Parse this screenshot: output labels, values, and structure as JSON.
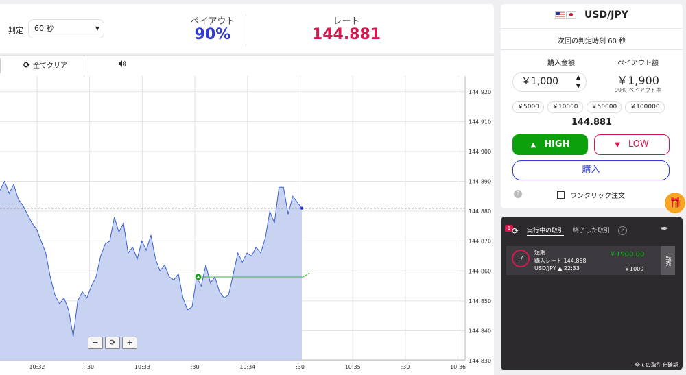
{
  "header": {
    "judge_label": "判定",
    "judge_value": "60 秒",
    "payout_label": "ペイアウト",
    "payout_value": "90%",
    "rate_label": "レート",
    "rate_value": "144.881"
  },
  "toolbar": {
    "clear_label": "全てクリア",
    "sound_icon": "speaker-icon"
  },
  "chart_data": {
    "type": "area",
    "x_tick_labels": [
      "10:32",
      ":30",
      "10:33",
      ":30",
      "10:34",
      ":30",
      "10:35",
      ":30",
      "10:36"
    ],
    "y_tick_labels": [
      "144.920",
      "144.910",
      "144.900",
      "144.890",
      "144.880",
      "144.870",
      "144.860",
      "144.850",
      "144.840",
      "144.830"
    ],
    "ylim": [
      144.83,
      144.925
    ],
    "grid": true,
    "current_rate": 144.881,
    "entry_rate": 144.858,
    "series": [
      {
        "values": [
          144.887,
          144.89,
          144.886,
          144.889,
          144.884,
          144.882,
          144.879,
          144.876,
          144.874,
          144.87,
          144.866,
          144.858,
          144.852,
          144.849,
          144.851,
          144.847,
          144.838,
          144.85,
          144.853,
          144.851,
          144.855,
          144.858,
          144.865,
          144.869,
          144.87,
          144.878,
          144.873,
          144.876,
          144.866,
          144.868,
          144.864,
          144.87,
          144.867,
          144.872,
          144.864,
          144.86,
          144.862,
          144.858,
          144.857,
          144.859,
          144.851,
          144.847,
          144.848,
          144.858,
          144.855,
          144.862,
          144.856,
          144.858,
          144.853,
          144.851,
          144.852,
          144.859,
          144.866,
          144.863,
          144.866,
          144.865,
          144.868,
          144.866,
          144.871,
          144.88,
          144.876,
          144.888,
          144.888,
          144.879,
          144.885,
          144.883,
          144.881
        ]
      }
    ]
  },
  "zoom": {
    "minus": "−",
    "reset": "⟳",
    "plus": "+"
  },
  "trade": {
    "pair": "USD/JPY",
    "next_judge": "次回の判定時刻 60 秒",
    "amount_label": "購入金額",
    "amount_value": "￥1,000",
    "payout_amount_label": "ペイアウト額",
    "payout_amount_value": "￥1,900",
    "payout_rate_text": "90% ペイアウト率",
    "quick_amounts": [
      "￥5000",
      "￥10000",
      "￥50000",
      "￥100000"
    ],
    "rate": "144.881",
    "high_label": "HIGH",
    "low_label": "LOW",
    "buy_label": "購入",
    "one_click_label": "ワンクリック注文"
  },
  "positions": {
    "badge": "1",
    "tab_active": "実行中の取引",
    "tab_done": "終了した取引",
    "card": {
      "timer": ".7",
      "type": "短期",
      "payout": "￥1900.00",
      "rate_label": "購入レート 144.858",
      "pair_time": "USD/JPY ▲ 22:33",
      "amount": "￥1000",
      "side_label": "転売"
    },
    "all_trades": "全ての取引を確認"
  }
}
